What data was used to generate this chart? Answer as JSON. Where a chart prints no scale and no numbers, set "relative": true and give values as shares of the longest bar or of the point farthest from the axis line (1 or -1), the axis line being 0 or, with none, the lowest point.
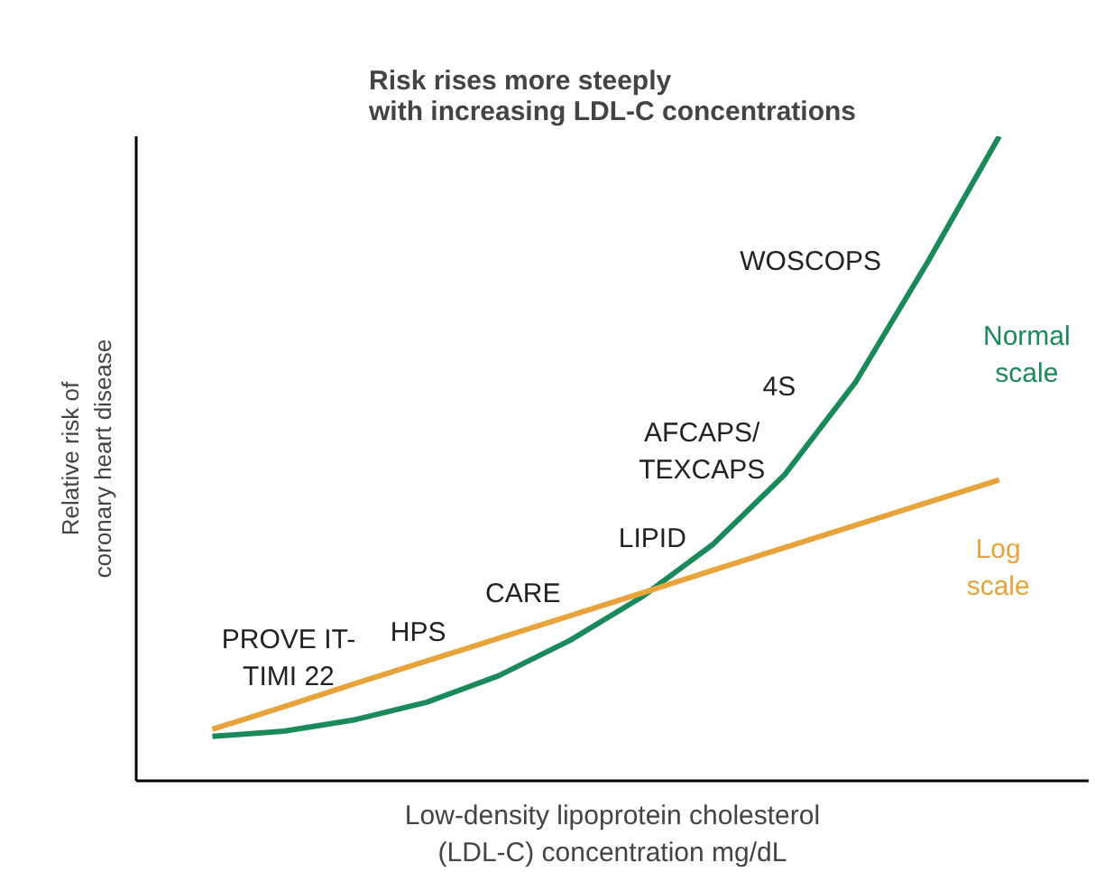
{
  "chart_data": {
    "type": "line",
    "relative": true,
    "title": "Risk rises more steeply\nwith increasing LDL-C concentrations",
    "xlabel": "Low-density lipoprotein cholesterol\n(LDL-C) concentration mg/dL",
    "ylabel": "Relative risk of\ncoronary heart disease",
    "tick_labels": false,
    "categories": [
      null,
      null,
      null,
      null,
      null,
      null,
      null,
      null,
      null,
      null,
      null,
      null
    ],
    "series": [
      {
        "name": "Normal scale",
        "color": "#1a8a5a",
        "values": [
          0.069,
          0.077,
          0.095,
          0.122,
          0.163,
          0.218,
          0.285,
          0.367,
          0.475,
          0.62,
          0.805,
          1
        ]
      },
      {
        "name": "Log scale",
        "color": "#e8a33a",
        "values": [
          0.08,
          0.115,
          0.151,
          0.186,
          0.221,
          0.256,
          0.291,
          0.327,
          0.362,
          0.397,
          0.432,
          0.467
        ]
      }
    ],
    "annotations": [
      "WOSCOPS",
      "4S",
      "AFCAPS/\nTEXCAPS",
      "LIPID",
      "CARE",
      "HPS",
      "PROVE IT-\nTIMI 22"
    ]
  }
}
